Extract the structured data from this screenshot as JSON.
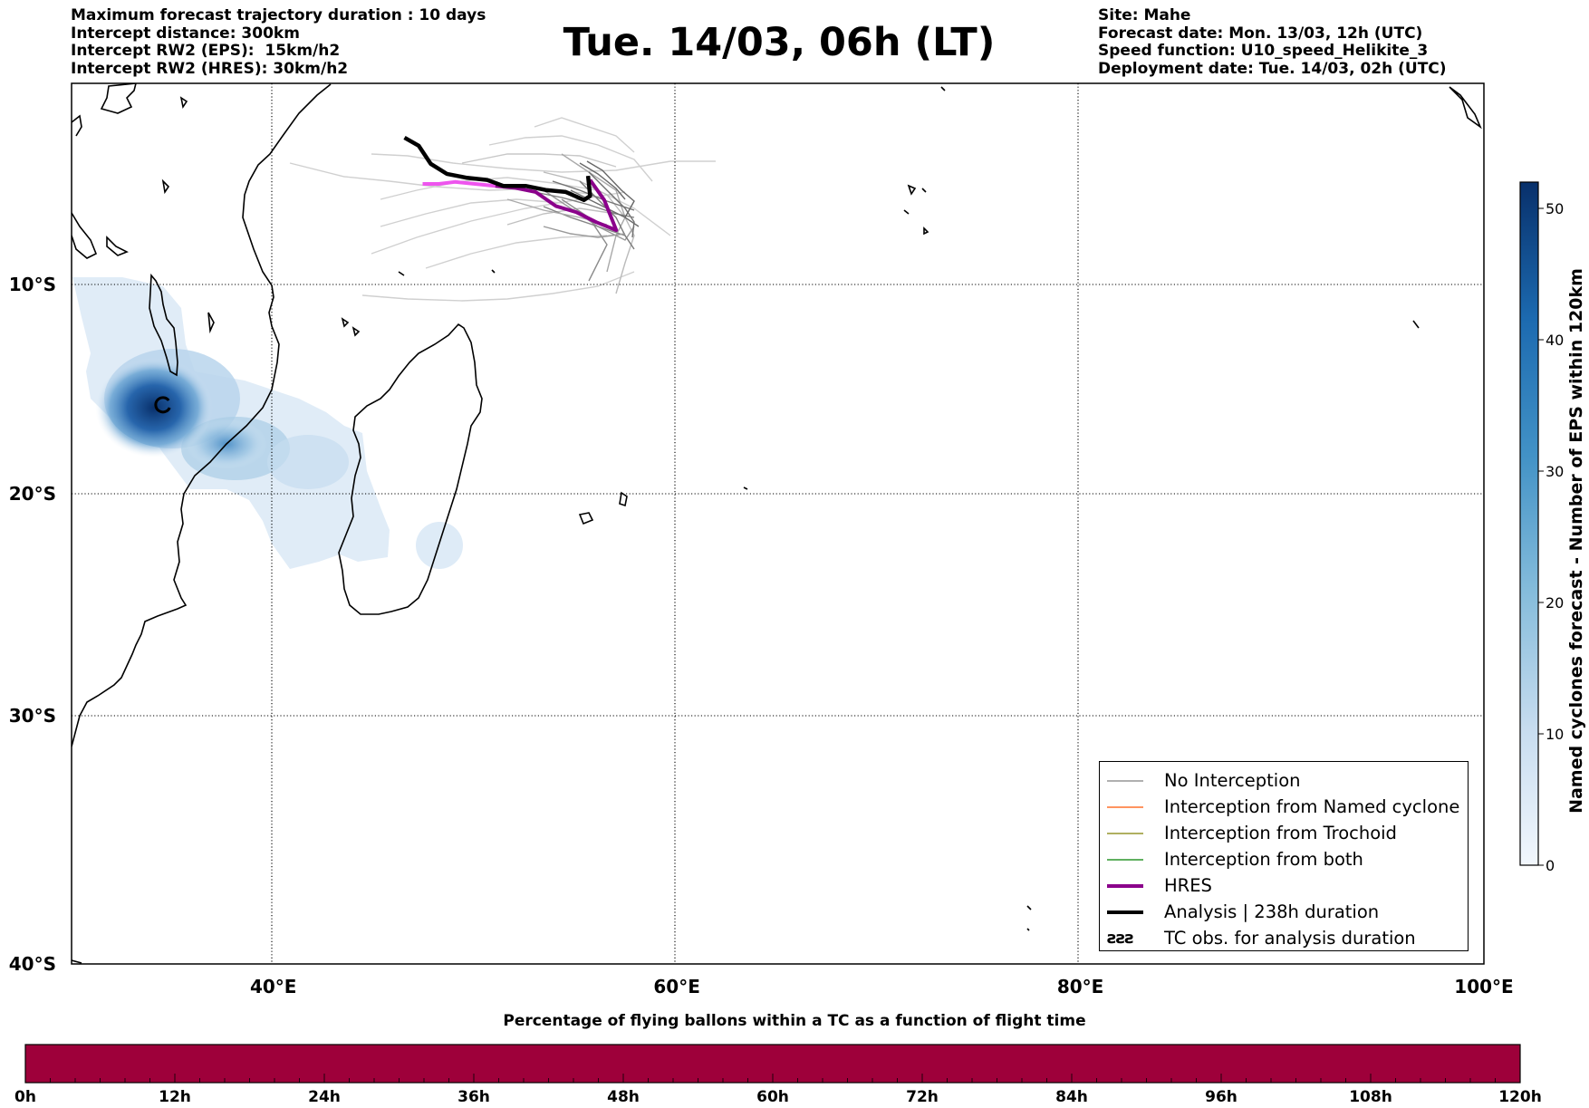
{
  "header": {
    "left_lines": [
      "Maximum forecast trajectory duration : 10 days",
      "Intercept distance: 300km",
      "Intercept RW2 (EPS):  15km/h2",
      "Intercept RW2 (HRES): 30km/h2"
    ],
    "title": "Tue. 14/03, 06h (LT)",
    "right_lines": [
      "Site: Mahe",
      "Forecast date: Mon. 13/03, 12h (UTC)",
      "Speed function: U10_speed_Helikite_3",
      "Deployment date: Tue. 14/03, 02h (UTC)"
    ]
  },
  "map": {
    "lon_range": [
      30,
      100
    ],
    "lat_range": [
      -40,
      0
    ],
    "lat_ticks": [
      {
        "value": -10,
        "label": "10°S"
      },
      {
        "value": -20,
        "label": "20°S"
      },
      {
        "value": -30,
        "label": "30°S"
      },
      {
        "value": -40,
        "label": "40°S"
      }
    ],
    "lon_ticks": [
      {
        "value": 40,
        "label": "40°E"
      },
      {
        "value": 60,
        "label": "60°E"
      },
      {
        "value": 80,
        "label": "80°E"
      },
      {
        "value": 100,
        "label": "100°E"
      }
    ],
    "colors": {
      "no_interception": "#808080",
      "named_cyclone": "#ff5500",
      "trochoid": "#808000",
      "both": "#008000",
      "hres": "#8b008b",
      "hres_start": "#ee55ee",
      "analysis": "#000000",
      "flight_bar": "#9e003a",
      "density_dark": "#08306b",
      "density_light": "#deebf7"
    },
    "analysis_track": [
      [
        46.5,
        -2.7
      ],
      [
        47.2,
        -3.1
      ],
      [
        47.8,
        -4.0
      ],
      [
        48.6,
        -4.5
      ],
      [
        49.6,
        -4.7
      ],
      [
        50.6,
        -4.8
      ],
      [
        51.4,
        -5.1
      ],
      [
        52.5,
        -5.1
      ],
      [
        53.5,
        -5.3
      ],
      [
        54.5,
        -5.4
      ],
      [
        55.4,
        -5.8
      ],
      [
        55.7,
        -5.6
      ],
      [
        55.6,
        -4.6
      ]
    ],
    "hres_track": [
      [
        47.4,
        -5.0
      ],
      [
        48.2,
        -5.0
      ],
      [
        49.0,
        -4.9
      ],
      [
        50.0,
        -5.0
      ],
      [
        51.0,
        -5.1
      ],
      [
        52.0,
        -5.2
      ],
      [
        53.0,
        -5.4
      ],
      [
        54.0,
        -6.1
      ],
      [
        55.0,
        -6.4
      ],
      [
        56.0,
        -6.9
      ],
      [
        57.0,
        -7.3
      ],
      [
        56.4,
        -5.8
      ],
      [
        55.7,
        -4.8
      ]
    ],
    "cyclone_obs": [
      34.5,
      -15.8
    ]
  },
  "legend": {
    "items": [
      {
        "label": "No Interception",
        "color": "#808080",
        "width": 1.2
      },
      {
        "label": "Interception from Named cyclone",
        "color": "#ff5500",
        "width": 1.2
      },
      {
        "label": "Interception from Trochoid",
        "color": "#808000",
        "width": 1.2
      },
      {
        "label": "Interception from both",
        "color": "#008000",
        "width": 1.2
      },
      {
        "label": "HRES",
        "color": "#8b008b",
        "width": 4
      },
      {
        "label": "Analysis | 238h duration",
        "color": "#000000",
        "width": 4
      }
    ],
    "obs_symbol": "ƨƨƨ",
    "obs_label": "TC obs. for analysis duration"
  },
  "colorbar": {
    "title": "Named cyclones forecast - Number of EPS within 120km",
    "min": 0,
    "max": 52,
    "ticks": [
      0,
      10,
      20,
      30,
      40,
      50
    ]
  },
  "flight_bar": {
    "title": "Percentage of flying ballons within a TC as a function of flight time",
    "ticks": [
      "0h",
      "12h",
      "24h",
      "36h",
      "48h",
      "60h",
      "72h",
      "84h",
      "96h",
      "108h",
      "120h"
    ],
    "color": "#9e003a"
  }
}
